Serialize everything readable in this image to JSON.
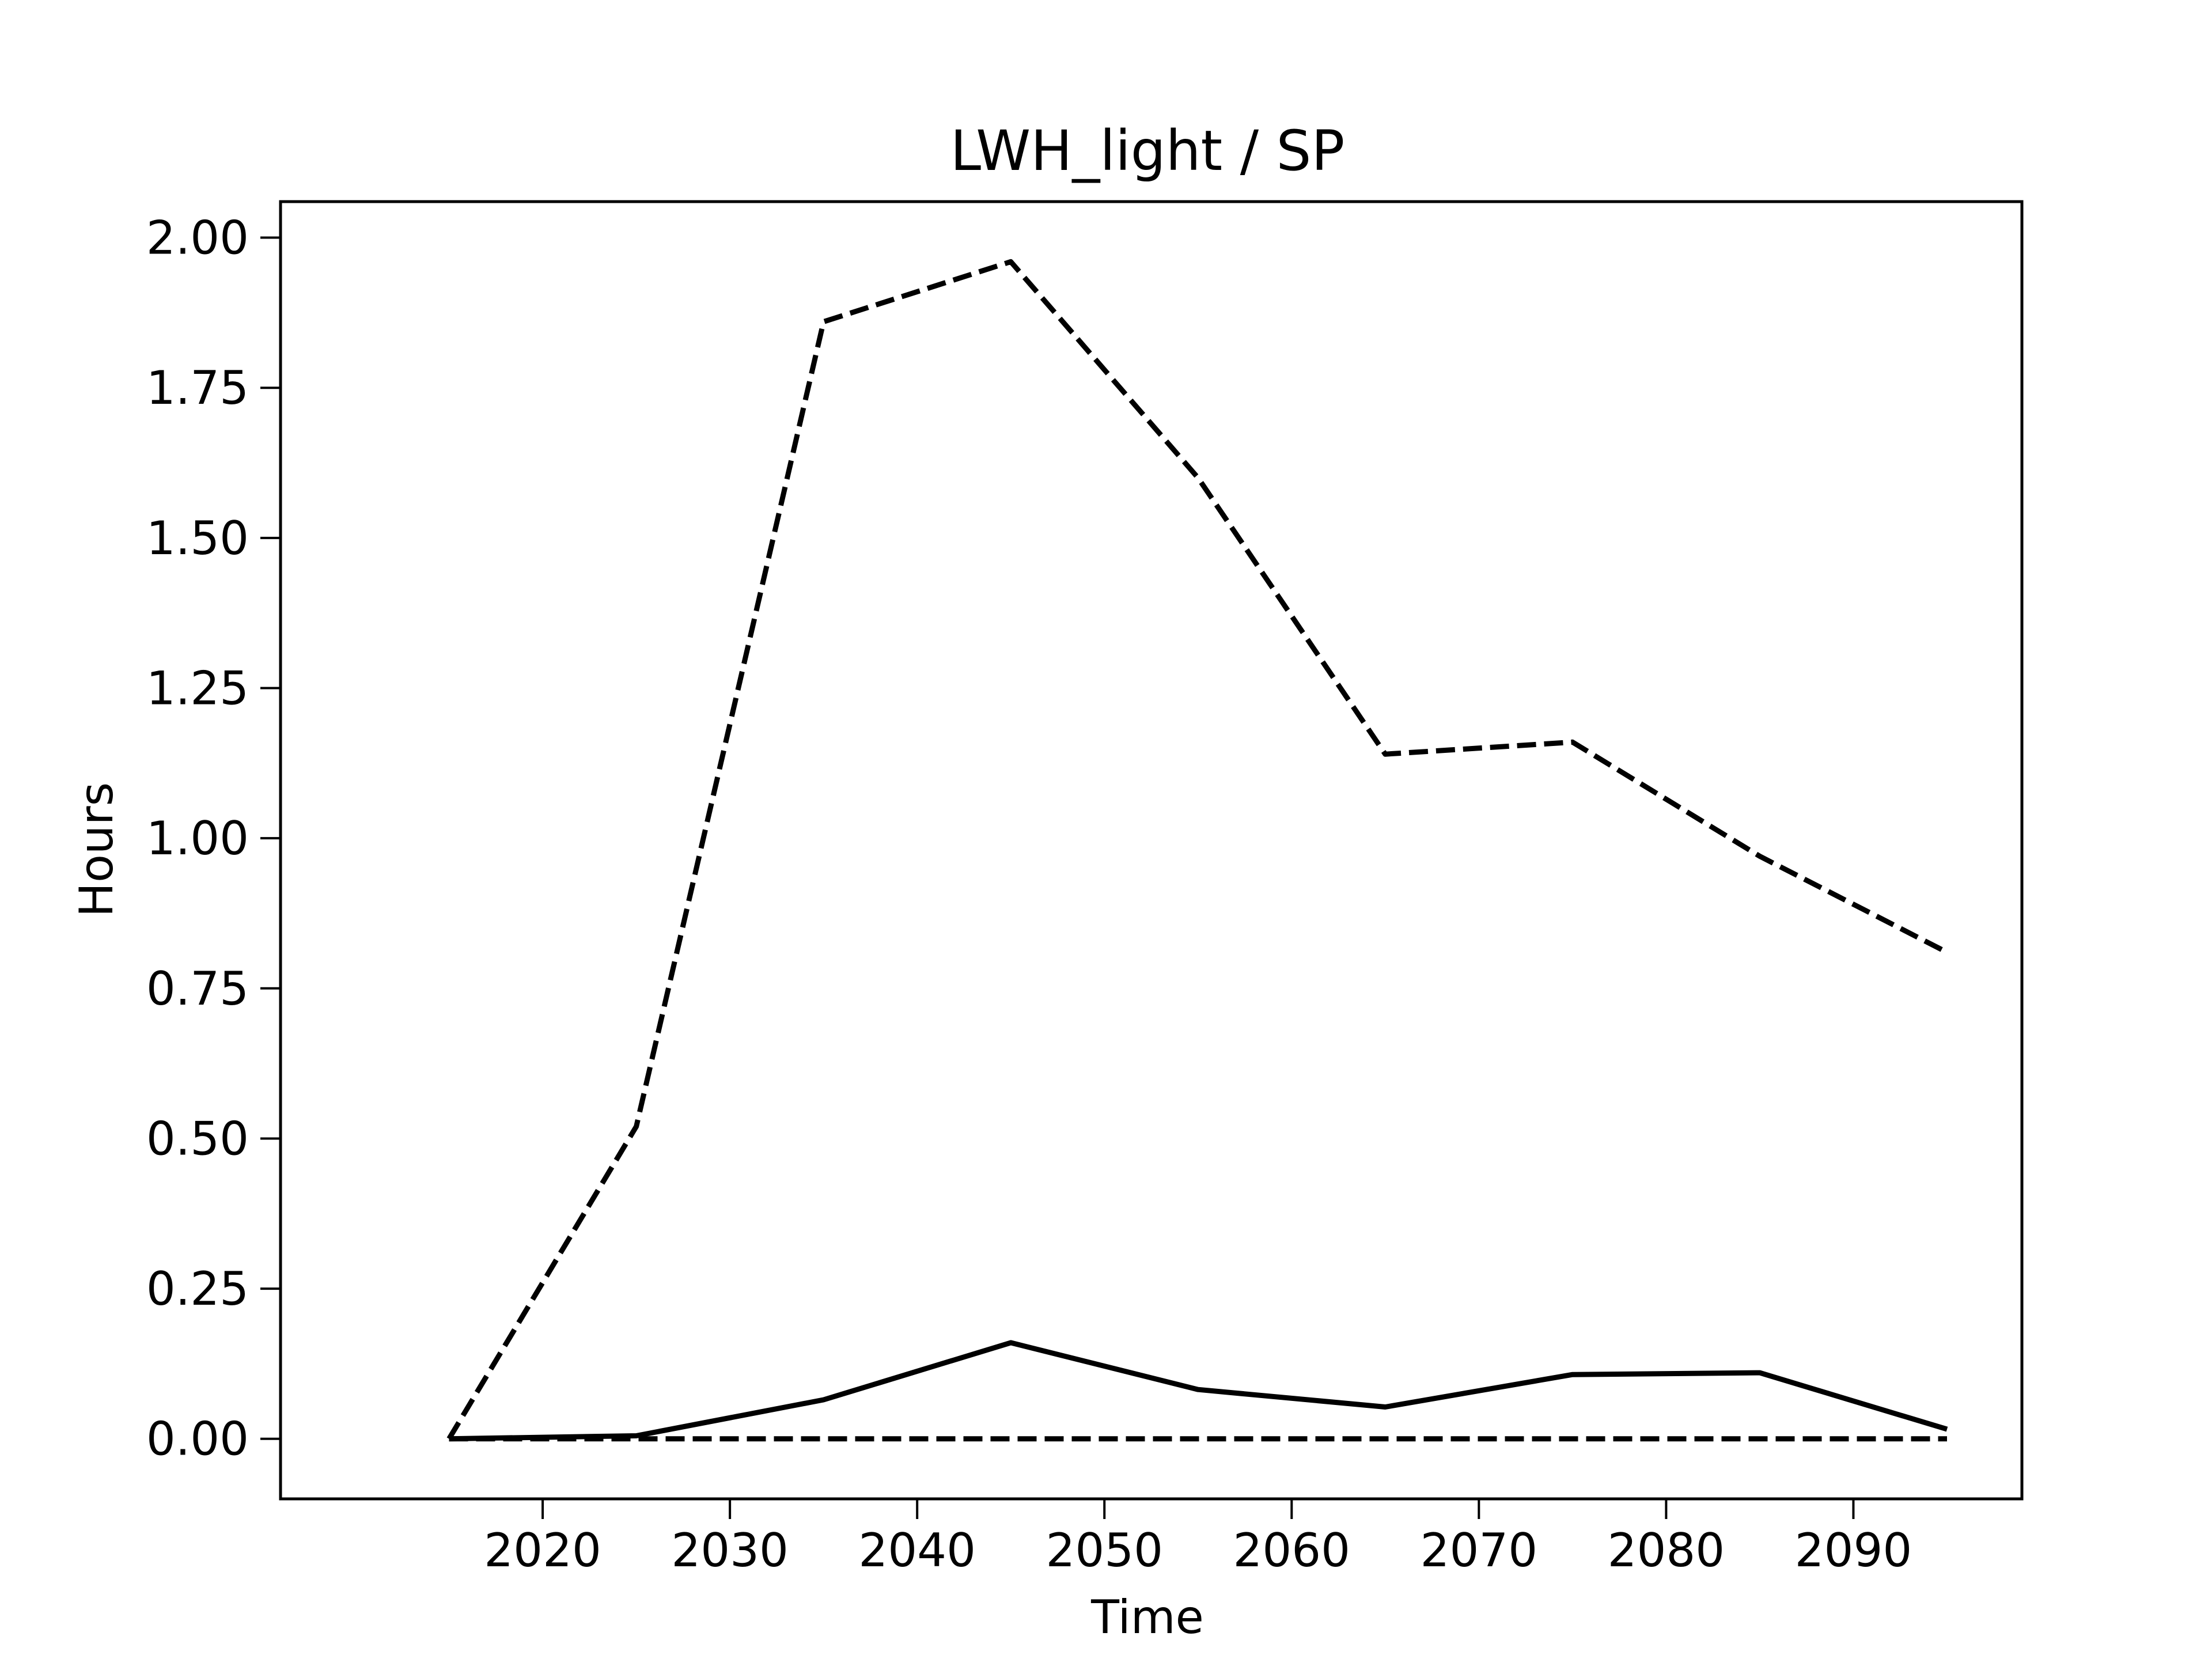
{
  "chart_data": {
    "type": "line",
    "title": "LWH_light / SP",
    "xlabel": "Time",
    "ylabel": "Hours",
    "x": [
      2015,
      2025,
      2035,
      2045,
      2055,
      2065,
      2075,
      2085,
      2095
    ],
    "xlim": [
      2006,
      2099
    ],
    "ylim": [
      -0.1,
      2.06
    ],
    "xticks": [
      2020,
      2030,
      2040,
      2050,
      2060,
      2070,
      2080,
      2090
    ],
    "yticks": [
      "0.00",
      "0.25",
      "0.50",
      "0.75",
      "1.00",
      "1.25",
      "1.50",
      "1.75",
      "2.00"
    ],
    "grid": false,
    "series": [
      {
        "style": "dashed",
        "color": "#000000",
        "values": [
          0.0,
          0.52,
          1.86,
          1.96,
          1.6,
          1.14,
          1.16,
          0.97,
          0.81
        ]
      },
      {
        "style": "solid",
        "color": "#000000",
        "values": [
          0.0,
          0.005,
          0.065,
          0.16,
          0.082,
          0.053,
          0.107,
          0.11,
          0.016
        ]
      },
      {
        "style": "dashed",
        "color": "#000000",
        "values": [
          0.0,
          0.0,
          0.0,
          0.0,
          0.0,
          0.0,
          0.0,
          0.0,
          0.0
        ]
      }
    ]
  }
}
